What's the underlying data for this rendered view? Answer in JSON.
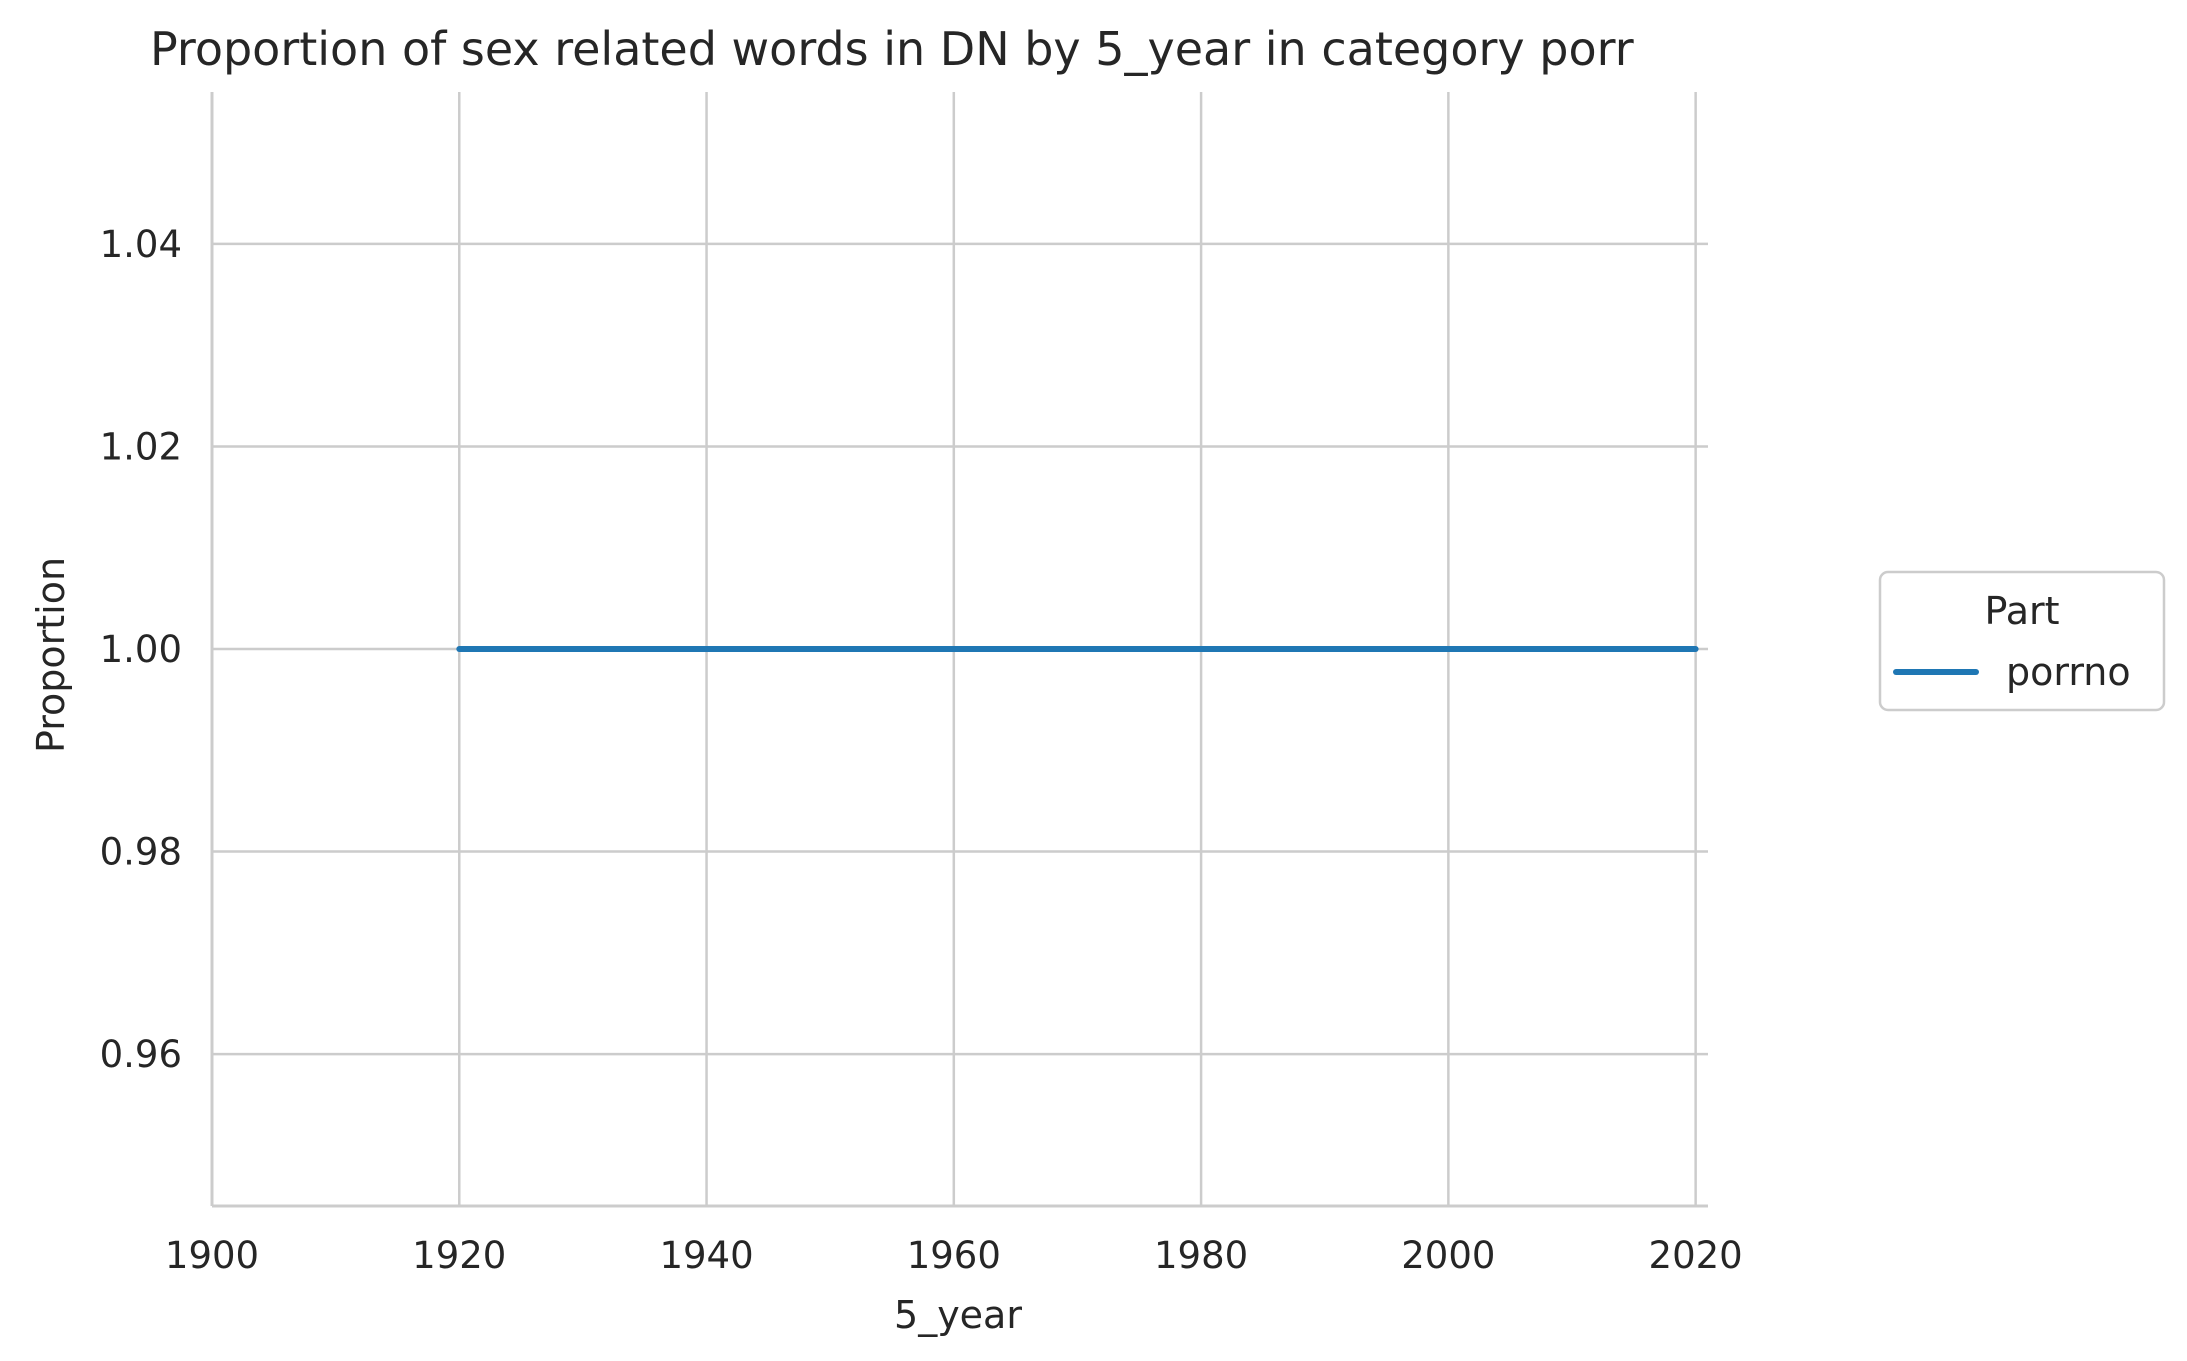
{
  "chart_data": {
    "type": "line",
    "title": "Proportion of sex related words in DN by 5_year in category porr",
    "xlabel": "5_year",
    "ylabel": "Proportion",
    "xlim": [
      1900,
      2021
    ],
    "ylim": [
      0.945,
      1.055
    ],
    "xticks": [
      1900,
      1920,
      1940,
      1960,
      1980,
      2000,
      2020
    ],
    "yticks": [
      0.96,
      0.98,
      1.0,
      1.02,
      1.04
    ],
    "ytick_labels": [
      "0.96",
      "0.98",
      "1.00",
      "1.02",
      "1.04"
    ],
    "grid": true,
    "legend": {
      "title": "Part",
      "placement": "right-outside"
    },
    "series": [
      {
        "name": "porrno",
        "color": "#1f77b4",
        "x": [
          1920,
          1925,
          1930,
          1935,
          1940,
          1945,
          1950,
          1955,
          1960,
          1965,
          1970,
          1975,
          1980,
          1985,
          1990,
          1995,
          2000,
          2005,
          2010,
          2015,
          2020
        ],
        "y": [
          1.0,
          1.0,
          1.0,
          1.0,
          1.0,
          1.0,
          1.0,
          1.0,
          1.0,
          1.0,
          1.0,
          1.0,
          1.0,
          1.0,
          1.0,
          1.0,
          1.0,
          1.0,
          1.0,
          1.0,
          1.0
        ]
      }
    ]
  }
}
